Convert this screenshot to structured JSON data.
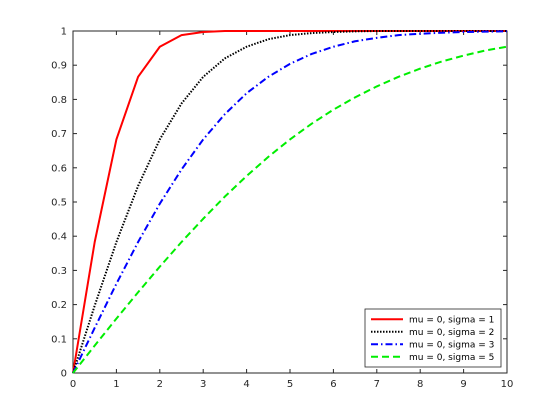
{
  "chart_data": {
    "type": "line",
    "title": "",
    "xlabel": "",
    "ylabel": "",
    "xlim": [
      0,
      10
    ],
    "ylim": [
      0,
      1
    ],
    "xticks": [
      0,
      1,
      2,
      3,
      4,
      5,
      6,
      7,
      8,
      9,
      10
    ],
    "yticks": [
      0,
      0.1,
      0.2,
      0.3,
      0.4,
      0.5,
      0.6,
      0.7,
      0.8,
      0.9,
      1
    ],
    "grid": false,
    "legend_position": "bottom-right",
    "x": [
      0,
      0.5,
      1,
      1.5,
      2,
      2.5,
      3,
      3.5,
      4,
      4.5,
      5,
      5.5,
      6,
      6.5,
      7,
      7.5,
      8,
      8.5,
      9,
      9.5,
      10
    ],
    "series": [
      {
        "name": "mu = 0, sigma = 1",
        "color": "#ff0000",
        "dash": "solid",
        "values": [
          0,
          0.383,
          0.683,
          0.866,
          0.954,
          0.988,
          0.997,
          1,
          1,
          1,
          1,
          1,
          1,
          1,
          1,
          1,
          1,
          1,
          1,
          1,
          1
        ]
      },
      {
        "name": "mu = 0, sigma = 2",
        "color": "#000000",
        "dash": "dotted",
        "values": [
          0,
          0.197,
          0.383,
          0.547,
          0.683,
          0.788,
          0.866,
          0.92,
          0.954,
          0.976,
          0.988,
          0.994,
          0.997,
          0.999,
          1,
          1,
          1,
          1,
          1,
          1,
          1
        ]
      },
      {
        "name": "mu = 0, sigma = 3",
        "color": "#0000ff",
        "dash": "dashdot",
        "values": [
          0,
          0.132,
          0.261,
          0.383,
          0.495,
          0.595,
          0.683,
          0.757,
          0.818,
          0.866,
          0.904,
          0.933,
          0.954,
          0.97,
          0.98,
          0.988,
          0.992,
          0.995,
          0.997,
          0.998,
          0.999
        ]
      },
      {
        "name": "mu = 0, sigma = 5",
        "color": "#00ee00",
        "dash": "dashed",
        "values": [
          0,
          0.08,
          0.159,
          0.236,
          0.311,
          0.383,
          0.451,
          0.516,
          0.576,
          0.632,
          0.683,
          0.729,
          0.77,
          0.806,
          0.838,
          0.866,
          0.89,
          0.911,
          0.928,
          0.943,
          0.954
        ]
      }
    ]
  }
}
